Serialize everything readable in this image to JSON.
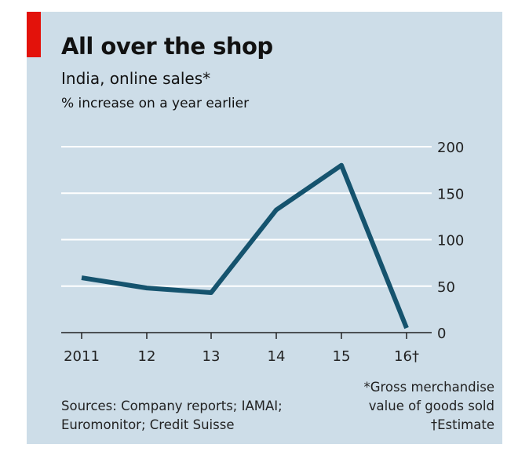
{
  "colors": {
    "background": "#cddde8",
    "accent": "#e3120b",
    "line": "#15536e",
    "grid": "#ffffff"
  },
  "title": "All over the shop",
  "subtitle": "India, online sales*",
  "unit": "% increase on a year earlier",
  "sources": [
    "Sources: Company reports; IAMAI;",
    "Euromonitor; Credit Suisse"
  ],
  "notes": [
    "*Gross merchandise",
    "value of goods sold",
    "†Estimate"
  ],
  "chart_data": {
    "type": "line",
    "title": "All over the shop",
    "subtitle": "India, online sales*",
    "ylabel": "% increase on a year earlier",
    "xlabel": "",
    "categories": [
      "2011",
      "12",
      "13",
      "14",
      "15",
      "16†"
    ],
    "series": [
      {
        "name": "India, online sales*",
        "values": [
          59,
          48,
          43,
          132,
          180,
          5
        ]
      }
    ],
    "ylim": [
      0,
      200
    ],
    "yticks": [
      0,
      50,
      100,
      150,
      200
    ],
    "grid": true,
    "y_axis_side": "right"
  }
}
